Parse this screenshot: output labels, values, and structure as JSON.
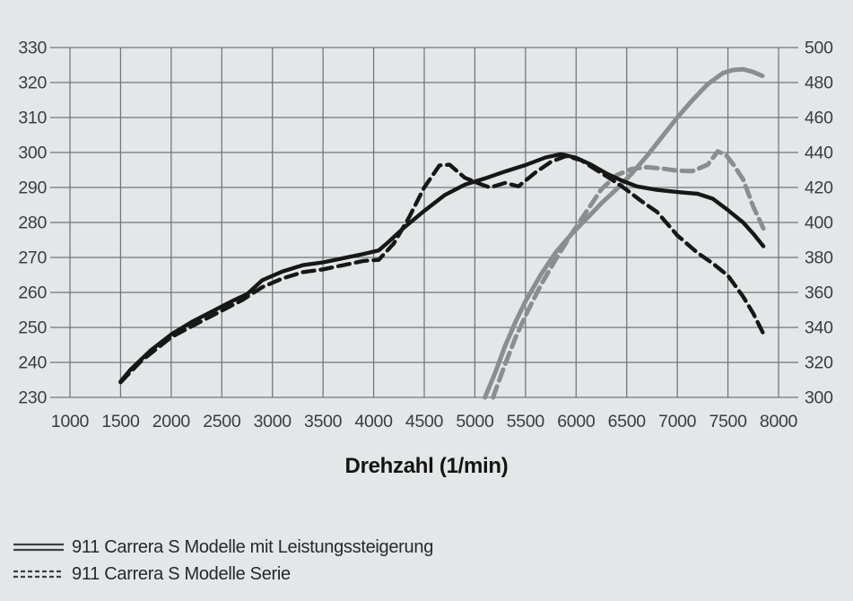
{
  "page": {
    "background_color": "#e4e7e8"
  },
  "chart_data": {
    "type": "line",
    "title": "",
    "xlabel": "Drehzahl (1/min)",
    "grid": true,
    "legend_position": "below-left",
    "x_range": [
      1000,
      8000
    ],
    "x_ticks": [
      1000,
      1500,
      2000,
      2500,
      3000,
      3500,
      4000,
      4500,
      5000,
      5500,
      6000,
      6500,
      7000,
      7500,
      8000
    ],
    "left_axis": {
      "range": [
        230,
        330
      ],
      "ticks": [
        330,
        320,
        310,
        300,
        290,
        280,
        270,
        260,
        250,
        240,
        230
      ]
    },
    "right_axis": {
      "range": [
        300,
        500
      ],
      "ticks": [
        500,
        480,
        460,
        440,
        420,
        400,
        380,
        360,
        340,
        320,
        300
      ],
      "relation_to_left": "right_value = (left_value - 230) * 2 + 300"
    },
    "colors": {
      "grid": "#707579",
      "curve_black": "#171717",
      "curve_gray": "#8b8e8f",
      "tick_text": "#3a3d3f",
      "legend_swatch": "#3c3f41"
    },
    "series": [
      {
        "id": "power-leistungssteigerung",
        "legend_label": "911 Carrera S Modelle mit Leistungssteigerung",
        "curve_role": "power-curve",
        "color": "#8b8e8f",
        "dashed": false,
        "stroke_width": 5,
        "value_axis": "left",
        "points": [
          [
            5100,
            230
          ],
          [
            5200,
            237
          ],
          [
            5300,
            244.8
          ],
          [
            5400,
            251.5
          ],
          [
            5500,
            257.5
          ],
          [
            5650,
            265
          ],
          [
            5800,
            271.5
          ],
          [
            5950,
            276.5
          ],
          [
            6100,
            281
          ],
          [
            6250,
            285.5
          ],
          [
            6400,
            289.5
          ],
          [
            6550,
            294
          ],
          [
            6700,
            299
          ],
          [
            6850,
            304.5
          ],
          [
            7000,
            310
          ],
          [
            7150,
            315
          ],
          [
            7300,
            319.5
          ],
          [
            7450,
            322.7
          ],
          [
            7550,
            323.6
          ],
          [
            7650,
            323.8
          ],
          [
            7750,
            323
          ],
          [
            7840,
            321.9
          ]
        ]
      },
      {
        "id": "power-serie",
        "legend_label": "911 Carrera S Modelle Serie",
        "curve_role": "power-curve",
        "color": "#8b8e8f",
        "dashed": true,
        "stroke_width": 5,
        "value_axis": "left",
        "points": [
          [
            5180,
            230
          ],
          [
            5280,
            238
          ],
          [
            5400,
            247
          ],
          [
            5520,
            254.5
          ],
          [
            5650,
            262
          ],
          [
            5800,
            269.5
          ],
          [
            5950,
            276.5
          ],
          [
            6100,
            283
          ],
          [
            6250,
            289.5
          ],
          [
            6400,
            293.5
          ],
          [
            6550,
            295.3
          ],
          [
            6700,
            295.8
          ],
          [
            6850,
            295.4
          ],
          [
            7000,
            294.8
          ],
          [
            7150,
            294.7
          ],
          [
            7300,
            296.5
          ],
          [
            7400,
            300.3
          ],
          [
            7480,
            299.3
          ],
          [
            7560,
            296.3
          ],
          [
            7650,
            292.3
          ],
          [
            7750,
            284.5
          ],
          [
            7850,
            278.3
          ]
        ]
      },
      {
        "id": "torque-serie",
        "legend_label": "911 Carrera S Modelle Serie",
        "curve_role": "torque-curve",
        "color": "#171717",
        "dashed": true,
        "stroke_width": 4.4,
        "value_axis": "left",
        "points": [
          [
            1500,
            234.3
          ],
          [
            1700,
            240.3
          ],
          [
            2000,
            247.2
          ],
          [
            2300,
            251.8
          ],
          [
            2500,
            254.8
          ],
          [
            2700,
            257.8
          ],
          [
            2900,
            261.5
          ],
          [
            3100,
            264
          ],
          [
            3300,
            265.8
          ],
          [
            3500,
            266.6
          ],
          [
            3700,
            267.8
          ],
          [
            3900,
            269
          ],
          [
            4050,
            269.3
          ],
          [
            4200,
            274
          ],
          [
            4350,
            281.5
          ],
          [
            4500,
            290
          ],
          [
            4650,
            296.3
          ],
          [
            4750,
            296.5
          ],
          [
            4900,
            292.8
          ],
          [
            5050,
            291
          ],
          [
            5150,
            290
          ],
          [
            5300,
            291.3
          ],
          [
            5430,
            290.3
          ],
          [
            5600,
            294.3
          ],
          [
            5750,
            297.3
          ],
          [
            5900,
            299
          ],
          [
            6050,
            297.8
          ],
          [
            6200,
            295
          ],
          [
            6350,
            292.3
          ],
          [
            6500,
            289.3
          ],
          [
            6650,
            286
          ],
          [
            6800,
            283
          ],
          [
            7000,
            276.3
          ],
          [
            7200,
            271.3
          ],
          [
            7350,
            268.3
          ],
          [
            7500,
            264.8
          ],
          [
            7650,
            258.8
          ],
          [
            7750,
            254
          ],
          [
            7850,
            248.2
          ]
        ]
      },
      {
        "id": "torque-leistungssteigerung",
        "legend_label": "911 Carrera S Modelle mit Leistungssteigerung",
        "curve_role": "torque-curve",
        "color": "#171717",
        "dashed": false,
        "stroke_width": 4.4,
        "value_axis": "left",
        "points": [
          [
            1500,
            234.5
          ],
          [
            1600,
            238
          ],
          [
            1800,
            243.5
          ],
          [
            2000,
            248
          ],
          [
            2200,
            251.5
          ],
          [
            2400,
            254.5
          ],
          [
            2600,
            257.5
          ],
          [
            2750,
            259.5
          ],
          [
            2900,
            263.5
          ],
          [
            3100,
            266
          ],
          [
            3300,
            267.8
          ],
          [
            3500,
            268.6
          ],
          [
            3700,
            269.8
          ],
          [
            3900,
            271
          ],
          [
            4050,
            272
          ],
          [
            4150,
            274.5
          ],
          [
            4300,
            278.5
          ],
          [
            4500,
            283.3
          ],
          [
            4700,
            287.8
          ],
          [
            4900,
            290.8
          ],
          [
            5100,
            292.6
          ],
          [
            5300,
            294.6
          ],
          [
            5500,
            296.4
          ],
          [
            5700,
            298.6
          ],
          [
            5850,
            299.5
          ],
          [
            6000,
            298.5
          ],
          [
            6150,
            296.5
          ],
          [
            6300,
            294
          ],
          [
            6450,
            292
          ],
          [
            6600,
            290.3
          ],
          [
            6800,
            289.3
          ],
          [
            7000,
            288.7
          ],
          [
            7200,
            288.2
          ],
          [
            7350,
            286.8
          ],
          [
            7500,
            283.5
          ],
          [
            7650,
            280
          ],
          [
            7750,
            276.8
          ],
          [
            7850,
            273.2
          ]
        ]
      }
    ],
    "legend": [
      {
        "label": "911 Carrera S Modelle mit Leistungssteigerung",
        "style": "double-solid-line"
      },
      {
        "label": "911 Carrera S Modelle Serie",
        "style": "double-dashed-line"
      }
    ]
  }
}
